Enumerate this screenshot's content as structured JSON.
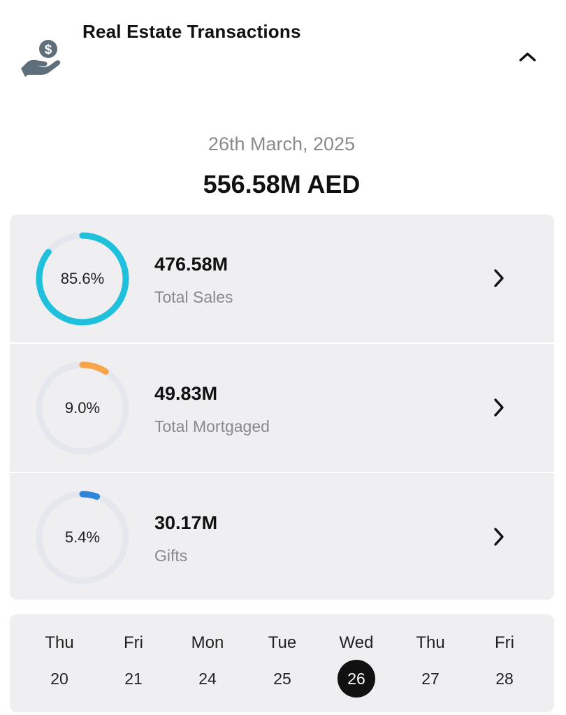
{
  "header": {
    "title": "Real Estate Transactions",
    "icon": "hand-dollar-icon",
    "collapse_icon": "chevron-up-icon"
  },
  "summary": {
    "date": "26th March, 2025",
    "total": "556.58M AED"
  },
  "breakdown": [
    {
      "percent_label": "85.6%",
      "percent": 85.6,
      "value": "476.58M",
      "label": "Total Sales",
      "color": "#1ec0db"
    },
    {
      "percent_label": "9.0%",
      "percent": 9.0,
      "value": "49.83M",
      "label": "Total Mortgaged",
      "color": "#f7a54a"
    },
    {
      "percent_label": "5.4%",
      "percent": 5.4,
      "value": "30.17M",
      "label": "Gifts",
      "color": "#2f86d8"
    }
  ],
  "calendar": {
    "days": [
      {
        "name": "Thu",
        "num": "20"
      },
      {
        "name": "Fri",
        "num": "21"
      },
      {
        "name": "Mon",
        "num": "24"
      },
      {
        "name": "Tue",
        "num": "25"
      },
      {
        "name": "Wed",
        "num": "26",
        "selected": true
      },
      {
        "name": "Thu",
        "num": "27"
      },
      {
        "name": "Fri",
        "num": "28"
      }
    ]
  },
  "colors": {
    "card_bg": "#efeff1",
    "ring_track": "#e4e7ee",
    "muted_text": "#8a8a8e",
    "icon_gray": "#5f6e7b",
    "selected_day": "#111111"
  }
}
